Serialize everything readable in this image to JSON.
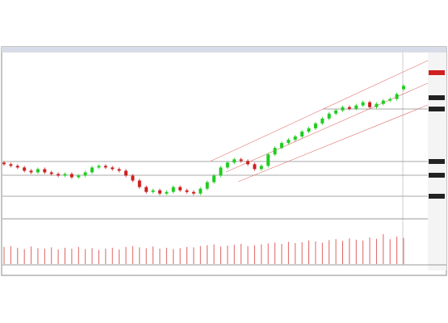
{
  "chart_data": {
    "type": "candlestick",
    "open": [
      33,
      32,
      31,
      30,
      28,
      27,
      29,
      27,
      26,
      25,
      26,
      24,
      25,
      27,
      30,
      31,
      30,
      29,
      28,
      25,
      22,
      18,
      15,
      16,
      14,
      15,
      18,
      16,
      15,
      14,
      17,
      21,
      25,
      30,
      33,
      35,
      34,
      32,
      29,
      31,
      38,
      42,
      45,
      47,
      49,
      52,
      54,
      57,
      60,
      63,
      65,
      67,
      66,
      68,
      70,
      67,
      69,
      71,
      72,
      78
    ],
    "high": [
      34,
      33,
      32,
      31,
      29,
      30,
      30,
      28,
      27,
      27,
      27,
      26,
      28,
      31,
      32,
      32,
      31,
      30,
      29,
      26,
      23,
      19,
      17,
      17,
      16,
      19,
      19,
      17,
      16,
      18,
      22,
      26,
      31,
      34,
      36,
      36,
      35,
      33,
      32,
      39,
      43,
      46,
      48,
      50,
      53,
      55,
      58,
      61,
      64,
      66,
      68,
      68,
      69,
      71,
      71,
      70,
      72,
      73,
      76,
      81
    ],
    "low": [
      31,
      30,
      29,
      27,
      26,
      26,
      26,
      25,
      24,
      24,
      23,
      23,
      24,
      26,
      29,
      29,
      28,
      27,
      24,
      21,
      17,
      14,
      14,
      13,
      13,
      14,
      15,
      14,
      13,
      13,
      16,
      20,
      24,
      29,
      32,
      33,
      31,
      28,
      28,
      30,
      37,
      41,
      44,
      46,
      48,
      51,
      53,
      56,
      59,
      62,
      64,
      65,
      65,
      67,
      66,
      66,
      68,
      70,
      71,
      77
    ],
    "close": [
      32,
      31,
      30,
      28,
      27,
      29,
      27,
      26,
      25,
      26,
      24,
      25,
      27,
      30,
      31,
      30,
      29,
      28,
      25,
      22,
      18,
      15,
      16,
      14,
      15,
      18,
      16,
      15,
      14,
      17,
      21,
      25,
      30,
      33,
      35,
      34,
      32,
      29,
      31,
      38,
      42,
      45,
      47,
      49,
      52,
      54,
      57,
      60,
      63,
      65,
      67,
      66,
      68,
      70,
      67,
      69,
      71,
      72,
      75,
      80
    ],
    "volume": [
      40,
      42,
      38,
      35,
      41,
      37,
      36,
      39,
      34,
      38,
      36,
      40,
      35,
      37,
      33,
      36,
      38,
      34,
      40,
      42,
      39,
      37,
      41,
      36,
      38,
      35,
      37,
      40,
      39,
      42,
      44,
      46,
      41,
      43,
      45,
      47,
      42,
      44,
      46,
      48,
      50,
      47,
      52,
      49,
      51,
      55,
      53,
      50,
      56,
      58,
      54,
      60,
      57,
      55,
      62,
      59,
      70,
      58,
      64,
      61
    ],
    "up_color": "#22cc22",
    "down_color": "#cc2222",
    "volume_color": "#e06060",
    "ylim": [
      0,
      100
    ],
    "vlim": [
      0,
      100
    ]
  }
}
